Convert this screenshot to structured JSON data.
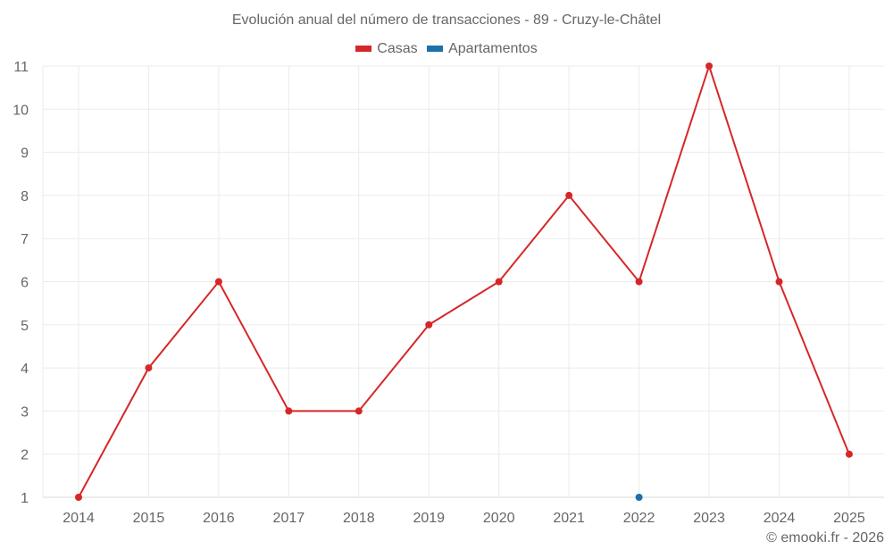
{
  "chart_data": {
    "type": "line",
    "title": "Evolución anual del número de transacciones - 89 - Cruzy-le-Châtel",
    "xlabel": "",
    "ylabel": "",
    "categories": [
      "2014",
      "2015",
      "2016",
      "2017",
      "2018",
      "2019",
      "2020",
      "2021",
      "2022",
      "2023",
      "2024",
      "2025"
    ],
    "series": [
      {
        "name": "Casas",
        "color": "#d62728",
        "values": [
          1,
          4,
          6,
          3,
          3,
          5,
          6,
          8,
          6,
          11,
          6,
          2
        ]
      },
      {
        "name": "Apartamentos",
        "color": "#1f6fa8",
        "values": [
          null,
          null,
          null,
          null,
          null,
          null,
          null,
          null,
          1,
          null,
          null,
          null
        ]
      }
    ],
    "ylim": [
      1,
      11
    ],
    "yticks": [
      1,
      2,
      3,
      4,
      5,
      6,
      7,
      8,
      9,
      10,
      11
    ],
    "grid": true,
    "legend_position": "top"
  },
  "legend": [
    {
      "label": "Casas",
      "color": "#d62728"
    },
    {
      "label": "Apartamentos",
      "color": "#1f6fa8"
    }
  ],
  "credit": "© emooki.fr - 2026"
}
